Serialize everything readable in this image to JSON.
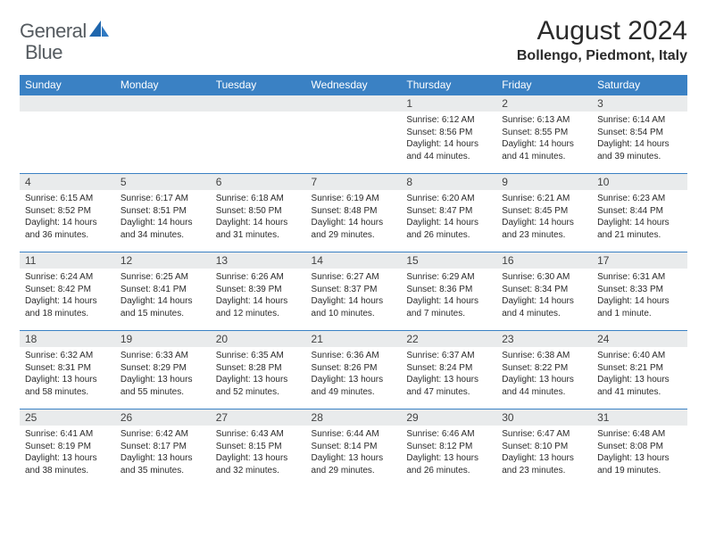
{
  "logo": {
    "text1": "General",
    "text2": "Blue"
  },
  "title": "August 2024",
  "location": "Bollengo, Piedmont, Italy",
  "style": {
    "header_bg": "#3a81c4",
    "header_fg": "#ffffff",
    "daynum_bg": "#e9ebec",
    "rule_color": "#3a81c4",
    "title_fontsize": 30,
    "location_fontsize": 16,
    "th_fontsize": 12,
    "cell_fontsize": 10
  },
  "weekdays": [
    "Sunday",
    "Monday",
    "Tuesday",
    "Wednesday",
    "Thursday",
    "Friday",
    "Saturday"
  ],
  "weeks": [
    [
      {
        "n": "",
        "sr": "",
        "ss": "",
        "dl": ""
      },
      {
        "n": "",
        "sr": "",
        "ss": "",
        "dl": ""
      },
      {
        "n": "",
        "sr": "",
        "ss": "",
        "dl": ""
      },
      {
        "n": "",
        "sr": "",
        "ss": "",
        "dl": ""
      },
      {
        "n": "1",
        "sr": "6:12 AM",
        "ss": "8:56 PM",
        "dl": "14 hours and 44 minutes."
      },
      {
        "n": "2",
        "sr": "6:13 AM",
        "ss": "8:55 PM",
        "dl": "14 hours and 41 minutes."
      },
      {
        "n": "3",
        "sr": "6:14 AM",
        "ss": "8:54 PM",
        "dl": "14 hours and 39 minutes."
      }
    ],
    [
      {
        "n": "4",
        "sr": "6:15 AM",
        "ss": "8:52 PM",
        "dl": "14 hours and 36 minutes."
      },
      {
        "n": "5",
        "sr": "6:17 AM",
        "ss": "8:51 PM",
        "dl": "14 hours and 34 minutes."
      },
      {
        "n": "6",
        "sr": "6:18 AM",
        "ss": "8:50 PM",
        "dl": "14 hours and 31 minutes."
      },
      {
        "n": "7",
        "sr": "6:19 AM",
        "ss": "8:48 PM",
        "dl": "14 hours and 29 minutes."
      },
      {
        "n": "8",
        "sr": "6:20 AM",
        "ss": "8:47 PM",
        "dl": "14 hours and 26 minutes."
      },
      {
        "n": "9",
        "sr": "6:21 AM",
        "ss": "8:45 PM",
        "dl": "14 hours and 23 minutes."
      },
      {
        "n": "10",
        "sr": "6:23 AM",
        "ss": "8:44 PM",
        "dl": "14 hours and 21 minutes."
      }
    ],
    [
      {
        "n": "11",
        "sr": "6:24 AM",
        "ss": "8:42 PM",
        "dl": "14 hours and 18 minutes."
      },
      {
        "n": "12",
        "sr": "6:25 AM",
        "ss": "8:41 PM",
        "dl": "14 hours and 15 minutes."
      },
      {
        "n": "13",
        "sr": "6:26 AM",
        "ss": "8:39 PM",
        "dl": "14 hours and 12 minutes."
      },
      {
        "n": "14",
        "sr": "6:27 AM",
        "ss": "8:37 PM",
        "dl": "14 hours and 10 minutes."
      },
      {
        "n": "15",
        "sr": "6:29 AM",
        "ss": "8:36 PM",
        "dl": "14 hours and 7 minutes."
      },
      {
        "n": "16",
        "sr": "6:30 AM",
        "ss": "8:34 PM",
        "dl": "14 hours and 4 minutes."
      },
      {
        "n": "17",
        "sr": "6:31 AM",
        "ss": "8:33 PM",
        "dl": "14 hours and 1 minute."
      }
    ],
    [
      {
        "n": "18",
        "sr": "6:32 AM",
        "ss": "8:31 PM",
        "dl": "13 hours and 58 minutes."
      },
      {
        "n": "19",
        "sr": "6:33 AM",
        "ss": "8:29 PM",
        "dl": "13 hours and 55 minutes."
      },
      {
        "n": "20",
        "sr": "6:35 AM",
        "ss": "8:28 PM",
        "dl": "13 hours and 52 minutes."
      },
      {
        "n": "21",
        "sr": "6:36 AM",
        "ss": "8:26 PM",
        "dl": "13 hours and 49 minutes."
      },
      {
        "n": "22",
        "sr": "6:37 AM",
        "ss": "8:24 PM",
        "dl": "13 hours and 47 minutes."
      },
      {
        "n": "23",
        "sr": "6:38 AM",
        "ss": "8:22 PM",
        "dl": "13 hours and 44 minutes."
      },
      {
        "n": "24",
        "sr": "6:40 AM",
        "ss": "8:21 PM",
        "dl": "13 hours and 41 minutes."
      }
    ],
    [
      {
        "n": "25",
        "sr": "6:41 AM",
        "ss": "8:19 PM",
        "dl": "13 hours and 38 minutes."
      },
      {
        "n": "26",
        "sr": "6:42 AM",
        "ss": "8:17 PM",
        "dl": "13 hours and 35 minutes."
      },
      {
        "n": "27",
        "sr": "6:43 AM",
        "ss": "8:15 PM",
        "dl": "13 hours and 32 minutes."
      },
      {
        "n": "28",
        "sr": "6:44 AM",
        "ss": "8:14 PM",
        "dl": "13 hours and 29 minutes."
      },
      {
        "n": "29",
        "sr": "6:46 AM",
        "ss": "8:12 PM",
        "dl": "13 hours and 26 minutes."
      },
      {
        "n": "30",
        "sr": "6:47 AM",
        "ss": "8:10 PM",
        "dl": "13 hours and 23 minutes."
      },
      {
        "n": "31",
        "sr": "6:48 AM",
        "ss": "8:08 PM",
        "dl": "13 hours and 19 minutes."
      }
    ]
  ],
  "labels": {
    "sunrise": "Sunrise: ",
    "sunset": "Sunset: ",
    "daylight": "Daylight: "
  }
}
